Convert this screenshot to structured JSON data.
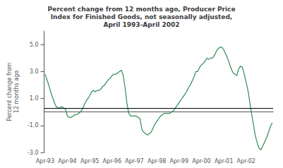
{
  "chart_data": {
    "type": "line",
    "title": "Percent change from 12 months ago, Producer Price\nIndex for Finished Goods, not seasonally adjusted,\nApril 1993-April 2002",
    "ylabel": "Percent change from\n12 months ago",
    "color": "#2e8b57",
    "grid": false,
    "hline": 0.3,
    "ylim": [
      -3.0,
      6.0
    ],
    "yticks": [
      {
        "value": -3.0,
        "label": "-3.0"
      },
      {
        "value": -1.0,
        "label": "-1.0"
      },
      {
        "value": 1.0,
        "label": "1.0"
      },
      {
        "value": 3.0,
        "label": "3.0"
      },
      {
        "value": 5.0,
        "label": "5.0"
      }
    ],
    "categories": [
      "Apr-93",
      null,
      null,
      null,
      null,
      null,
      null,
      null,
      null,
      null,
      null,
      null,
      "Apr-94",
      null,
      null,
      null,
      null,
      null,
      null,
      null,
      null,
      null,
      null,
      null,
      "Apr-95",
      null,
      null,
      null,
      null,
      null,
      null,
      null,
      null,
      null,
      null,
      null,
      "Apr-96",
      null,
      null,
      null,
      null,
      null,
      null,
      null,
      null,
      null,
      null,
      null,
      "Apr-97",
      null,
      null,
      null,
      null,
      null,
      null,
      null,
      null,
      null,
      null,
      null,
      "Apr-98",
      null,
      null,
      null,
      null,
      null,
      null,
      null,
      null,
      null,
      null,
      null,
      "Apr-99",
      null,
      null,
      null,
      null,
      null,
      null,
      null,
      null,
      null,
      null,
      null,
      "Apr-00",
      null,
      null,
      null,
      null,
      null,
      null,
      null,
      null,
      null,
      null,
      null,
      "Apr-01",
      null,
      null,
      null,
      null,
      null,
      null,
      null,
      null,
      null,
      null,
      null,
      "Apr-02",
      null,
      null,
      null,
      null,
      null,
      null,
      null,
      null,
      null,
      null,
      null,
      null,
      null,
      null
    ],
    "values": [
      2.8,
      2.4,
      2.0,
      1.5,
      1.1,
      0.7,
      0.4,
      0.3,
      0.3,
      0.4,
      0.3,
      0.2,
      -0.3,
      -0.4,
      -0.4,
      -0.3,
      -0.2,
      -0.2,
      -0.1,
      0.0,
      0.2,
      0.5,
      0.8,
      1.0,
      1.2,
      1.5,
      1.6,
      1.5,
      1.6,
      1.6,
      1.7,
      1.9,
      2.0,
      2.2,
      2.4,
      2.5,
      2.7,
      2.8,
      2.8,
      2.9,
      3.0,
      3.1,
      2.7,
      1.8,
      0.6,
      -0.1,
      -0.3,
      -0.3,
      -0.3,
      -0.3,
      -0.4,
      -0.5,
      -1.3,
      -1.5,
      -1.6,
      -1.7,
      -1.6,
      -1.5,
      -1.2,
      -0.9,
      -0.7,
      -0.5,
      -0.3,
      -0.2,
      -0.1,
      -0.1,
      -0.1,
      -0.1,
      0.0,
      0.1,
      0.3,
      0.5,
      0.7,
      0.9,
      1.1,
      1.3,
      1.5,
      1.8,
      2.0,
      2.3,
      2.6,
      3.0,
      3.0,
      3.3,
      3.5,
      3.6,
      3.8,
      4.0,
      3.9,
      4.0,
      4.0,
      4.2,
      4.5,
      4.7,
      4.8,
      4.8,
      4.6,
      4.3,
      4.0,
      3.6,
      3.2,
      2.9,
      2.8,
      2.7,
      3.2,
      3.4,
      3.3,
      2.8,
      2.2,
      1.6,
      0.7,
      -0.2,
      -1.0,
      -1.8,
      -2.3,
      -2.7,
      -2.8,
      -2.5,
      -2.2,
      -1.9,
      -1.5,
      -1.1,
      -0.8
    ]
  }
}
